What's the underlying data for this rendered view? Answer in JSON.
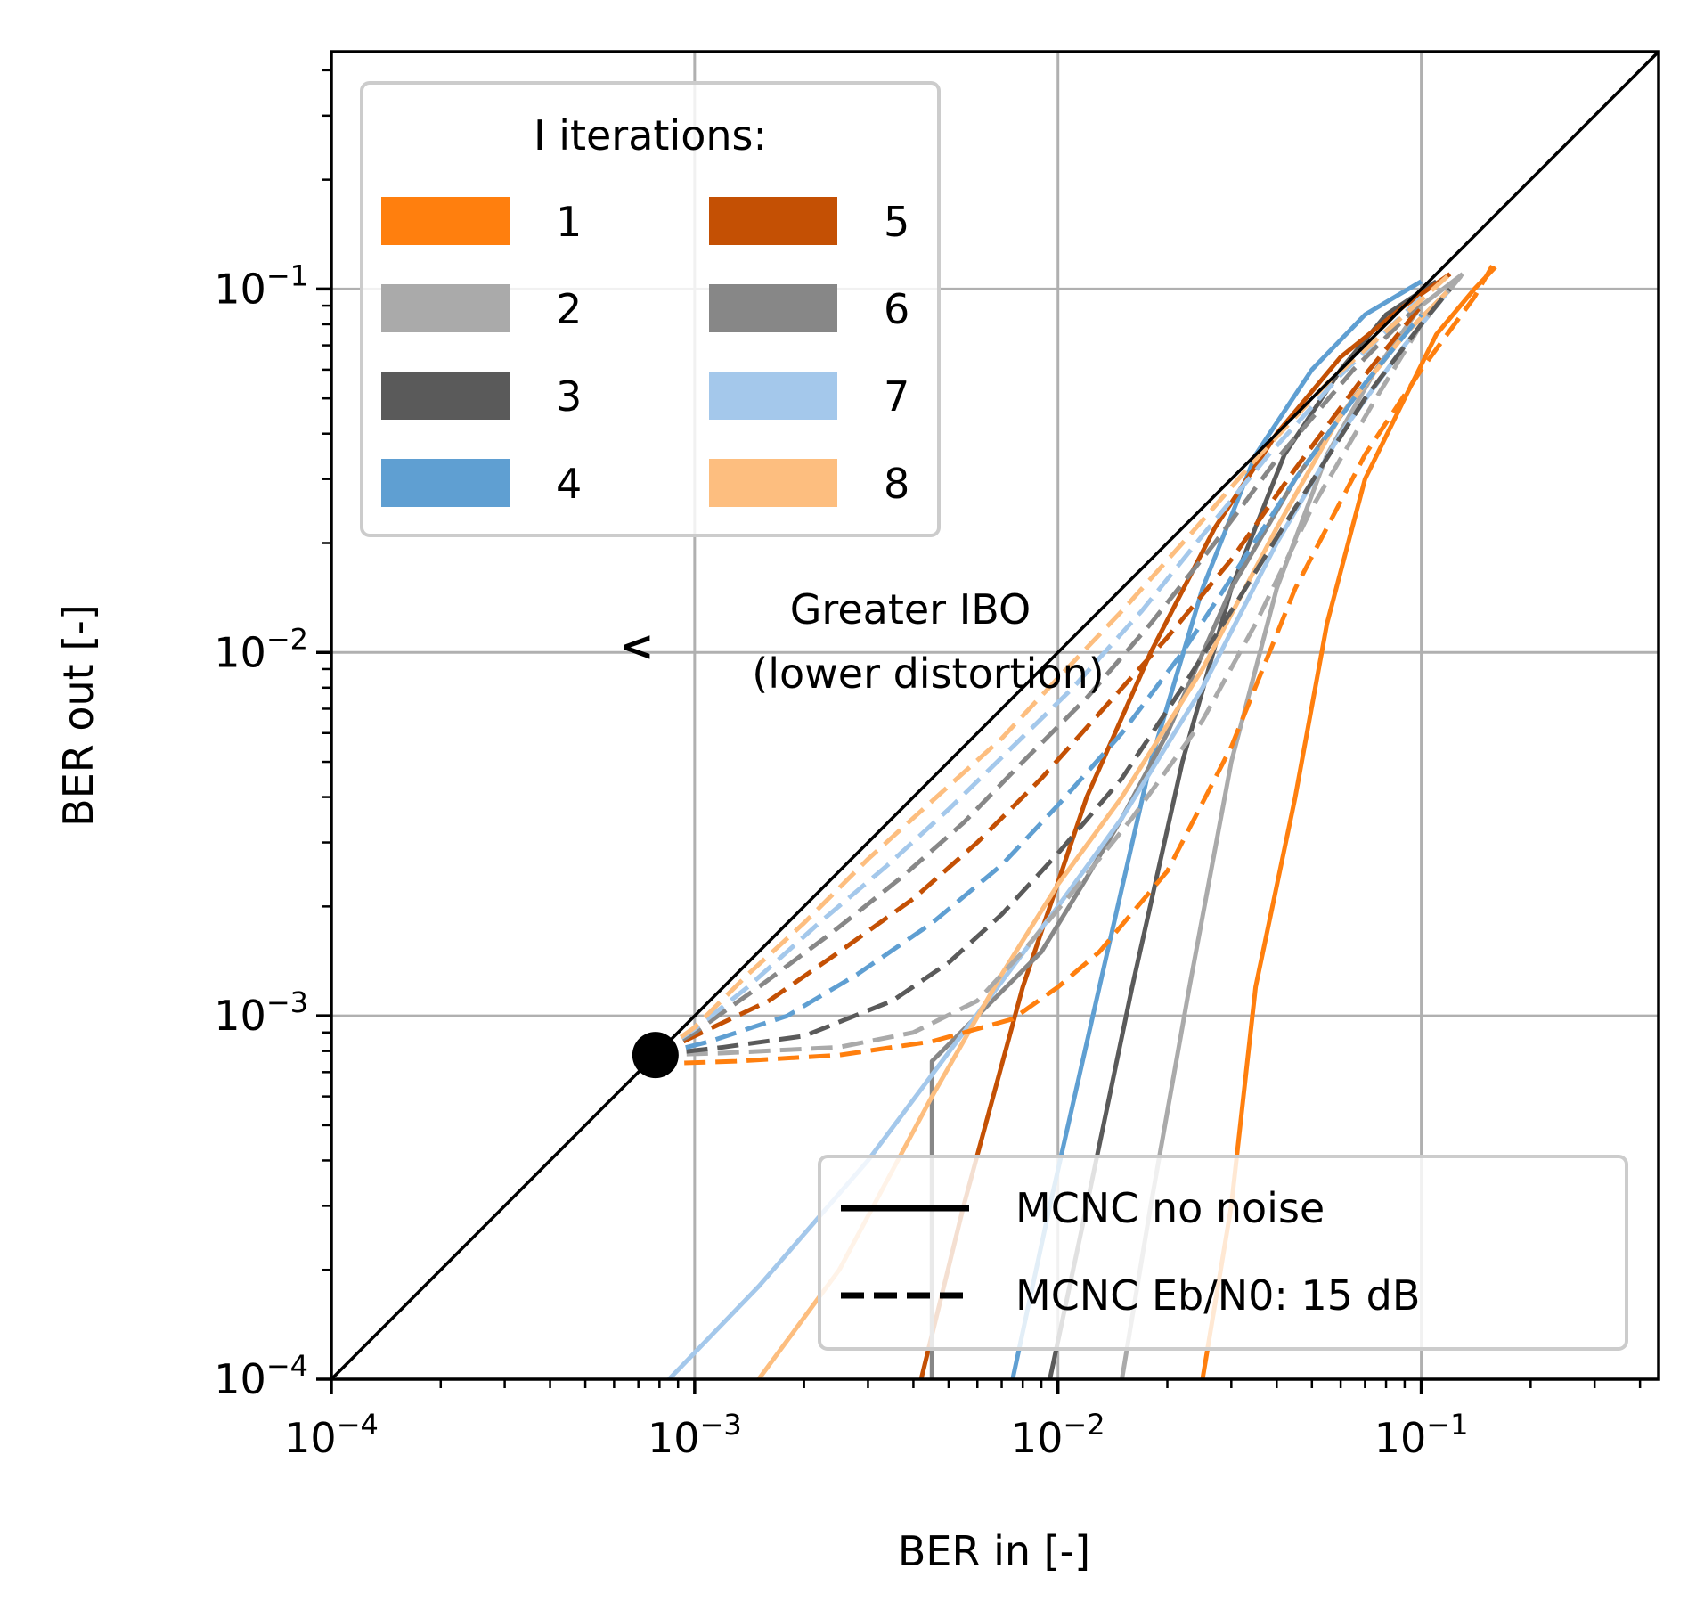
{
  "chart_data": {
    "type": "line",
    "title": "",
    "xlabel": "BER in [-]",
    "ylabel": "BER out [-]",
    "xscale": "log",
    "yscale": "log",
    "xlim": [
      0.0001,
      0.45
    ],
    "ylim": [
      0.0001,
      0.45
    ],
    "grid": true,
    "x_ticks": [
      {
        "value": 0.0001,
        "base": "10",
        "exp": "−4"
      },
      {
        "value": 0.001,
        "base": "10",
        "exp": "−3"
      },
      {
        "value": 0.01,
        "base": "10",
        "exp": "−2"
      },
      {
        "value": 0.1,
        "base": "10",
        "exp": "−1"
      }
    ],
    "y_ticks": [
      {
        "value": 0.0001,
        "base": "10",
        "exp": "−4"
      },
      {
        "value": 0.001,
        "base": "10",
        "exp": "−3"
      },
      {
        "value": 0.01,
        "base": "10",
        "exp": "−2"
      },
      {
        "value": 0.1,
        "base": "10",
        "exp": "−1"
      }
    ],
    "iterations_legend": {
      "title": "I iterations:",
      "placement": "upper-left",
      "entries": [
        {
          "label": "1",
          "color": "#ff7f0e"
        },
        {
          "label": "2",
          "color": "#aaaaaa"
        },
        {
          "label": "3",
          "color": "#5a5a5a"
        },
        {
          "label": "4",
          "color": "#5f9fd2"
        },
        {
          "label": "5",
          "color": "#c45004"
        },
        {
          "label": "6",
          "color": "#878787"
        },
        {
          "label": "7",
          "color": "#a4c8eb"
        },
        {
          "label": "8",
          "color": "#fdbe7f"
        }
      ]
    },
    "style_legend": {
      "placement": "lower-right",
      "entries": [
        {
          "label": "MCNC no noise",
          "dash": "solid"
        },
        {
          "label": "MCNC Eb/N0: 15 dB",
          "dash": "dashed"
        }
      ]
    },
    "annotation": {
      "text_lines": [
        "Greater IBO",
        "(lower distortion)"
      ],
      "arrow_symbol": "<",
      "at": [
        0.0008,
        0.01
      ]
    },
    "reference_line": {
      "name": "y = x",
      "color": "#000000"
    },
    "marker_point": {
      "x": 0.00078,
      "y": 0.00078
    },
    "series": [
      {
        "iteration": "1",
        "style": "solid",
        "color": "#ff7f0e",
        "x": [
          0.025,
          0.03,
          0.035,
          0.045,
          0.055,
          0.07,
          0.09,
          0.11,
          0.14,
          0.16
        ],
        "y": [
          0.0001,
          0.0003,
          0.0012,
          0.004,
          0.012,
          0.03,
          0.05,
          0.075,
          0.1,
          0.115
        ]
      },
      {
        "iteration": "2",
        "style": "solid",
        "color": "#aaaaaa",
        "x": [
          0.015,
          0.018,
          0.023,
          0.03,
          0.04,
          0.055,
          0.075,
          0.1,
          0.13
        ],
        "y": [
          0.0001,
          0.0003,
          0.0012,
          0.005,
          0.015,
          0.035,
          0.06,
          0.09,
          0.11
        ]
      },
      {
        "iteration": "3",
        "style": "solid",
        "color": "#5a5a5a",
        "x": [
          0.0095,
          0.012,
          0.016,
          0.022,
          0.03,
          0.042,
          0.06,
          0.08,
          0.11
        ],
        "y": [
          0.0001,
          0.0003,
          0.0012,
          0.005,
          0.015,
          0.035,
          0.06,
          0.085,
          0.105
        ]
      },
      {
        "iteration": "4",
        "style": "solid",
        "color": "#5f9fd2",
        "x": [
          0.0075,
          0.0095,
          0.013,
          0.018,
          0.025,
          0.035,
          0.05,
          0.07,
          0.1
        ],
        "y": [
          0.0001,
          0.0003,
          0.0012,
          0.005,
          0.015,
          0.035,
          0.06,
          0.085,
          0.105
        ]
      },
      {
        "iteration": "5",
        "style": "solid",
        "color": "#c45004",
        "x": [
          0.0042,
          0.0055,
          0.008,
          0.012,
          0.018,
          0.027,
          0.04,
          0.06,
          0.09,
          0.12
        ],
        "y": [
          0.0001,
          0.0003,
          0.0012,
          0.004,
          0.01,
          0.022,
          0.04,
          0.065,
          0.09,
          0.11
        ]
      },
      {
        "iteration": "6",
        "style": "solid",
        "color": "#878787",
        "x": [
          0.0045,
          0.0045,
          0.0045,
          0.006,
          0.009,
          0.012,
          0.015,
          0.02,
          0.03,
          0.045,
          0.065,
          0.09,
          0.12
        ],
        "y": [
          0.0001,
          0.0005,
          0.00075,
          0.001,
          0.0015,
          0.0024,
          0.0035,
          0.006,
          0.015,
          0.03,
          0.05,
          0.075,
          0.1
        ]
      },
      {
        "iteration": "7",
        "style": "solid",
        "color": "#a4c8eb",
        "x": [
          0.00085,
          0.0015,
          0.003,
          0.0055,
          0.01,
          0.015,
          0.025,
          0.04,
          0.06,
          0.09,
          0.12
        ],
        "y": [
          0.0001,
          0.00018,
          0.0004,
          0.0009,
          0.002,
          0.0035,
          0.008,
          0.02,
          0.04,
          0.07,
          0.1
        ]
      },
      {
        "iteration": "8",
        "style": "solid",
        "color": "#fdbe7f",
        "x": [
          0.0015,
          0.0025,
          0.0045,
          0.007,
          0.01,
          0.015,
          0.025,
          0.04,
          0.06,
          0.09,
          0.12
        ],
        "y": [
          0.0001,
          0.0002,
          0.0006,
          0.0013,
          0.0023,
          0.004,
          0.009,
          0.022,
          0.045,
          0.075,
          0.1
        ]
      },
      {
        "iteration": "1",
        "style": "dashed",
        "color": "#ff7f0e",
        "x": [
          0.00078,
          0.00085,
          0.0013,
          0.0025,
          0.0045,
          0.0075,
          0.01,
          0.013,
          0.02,
          0.03,
          0.045,
          0.07,
          0.1,
          0.14,
          0.16
        ],
        "y": [
          0.00078,
          0.00074,
          0.00075,
          0.00078,
          0.00085,
          0.00098,
          0.0012,
          0.0015,
          0.0025,
          0.0055,
          0.015,
          0.035,
          0.06,
          0.095,
          0.12
        ]
      },
      {
        "iteration": "2",
        "style": "dashed",
        "color": "#aaaaaa",
        "x": [
          0.00078,
          0.0012,
          0.0025,
          0.004,
          0.006,
          0.008,
          0.011,
          0.016,
          0.025,
          0.035,
          0.05,
          0.075,
          0.1,
          0.13
        ],
        "y": [
          0.00078,
          0.00079,
          0.00082,
          0.0009,
          0.0011,
          0.0015,
          0.0022,
          0.0035,
          0.0065,
          0.012,
          0.025,
          0.05,
          0.08,
          0.11
        ]
      },
      {
        "iteration": "3",
        "style": "dashed",
        "color": "#5a5a5a",
        "x": [
          0.00078,
          0.0012,
          0.002,
          0.0035,
          0.005,
          0.007,
          0.01,
          0.015,
          0.022,
          0.03,
          0.045,
          0.07,
          0.1,
          0.12
        ],
        "y": [
          0.00078,
          0.00082,
          0.00088,
          0.0011,
          0.0014,
          0.0019,
          0.0028,
          0.0045,
          0.008,
          0.013,
          0.025,
          0.05,
          0.08,
          0.1
        ]
      },
      {
        "iteration": "4",
        "style": "dashed",
        "color": "#5f9fd2",
        "x": [
          0.00078,
          0.0011,
          0.0018,
          0.0028,
          0.0045,
          0.007,
          0.01,
          0.015,
          0.022,
          0.03,
          0.045,
          0.07,
          0.1
        ],
        "y": [
          0.00078,
          0.00085,
          0.001,
          0.0013,
          0.0018,
          0.0026,
          0.0038,
          0.006,
          0.01,
          0.016,
          0.03,
          0.055,
          0.085
        ]
      },
      {
        "iteration": "5",
        "style": "dashed",
        "color": "#c45004",
        "x": [
          0.00078,
          0.001,
          0.0016,
          0.0025,
          0.004,
          0.006,
          0.009,
          0.013,
          0.02,
          0.03,
          0.045,
          0.07,
          0.1
        ],
        "y": [
          0.00078,
          0.00088,
          0.0011,
          0.0015,
          0.0021,
          0.003,
          0.0045,
          0.0068,
          0.011,
          0.018,
          0.032,
          0.058,
          0.09
        ]
      },
      {
        "iteration": "6",
        "style": "dashed",
        "color": "#878787",
        "x": [
          0.00078,
          0.001,
          0.0015,
          0.0024,
          0.0037,
          0.0055,
          0.008,
          0.012,
          0.018,
          0.027,
          0.04,
          0.065,
          0.1
        ],
        "y": [
          0.00078,
          0.0009,
          0.0012,
          0.0017,
          0.0024,
          0.0034,
          0.005,
          0.0075,
          0.012,
          0.02,
          0.034,
          0.06,
          0.092
        ]
      },
      {
        "iteration": "7",
        "style": "dashed",
        "color": "#a4c8eb",
        "x": [
          0.00078,
          0.001,
          0.0014,
          0.0022,
          0.0034,
          0.005,
          0.0075,
          0.011,
          0.017,
          0.025,
          0.038,
          0.06,
          0.1
        ],
        "y": [
          0.00078,
          0.00092,
          0.0012,
          0.0018,
          0.0026,
          0.0037,
          0.0055,
          0.008,
          0.013,
          0.021,
          0.035,
          0.058,
          0.095
        ]
      },
      {
        "iteration": "8",
        "style": "dashed",
        "color": "#fdbe7f",
        "x": [
          0.00078,
          0.001,
          0.0014,
          0.002,
          0.003,
          0.0045,
          0.007,
          0.01,
          0.015,
          0.023,
          0.035,
          0.055,
          0.09,
          0.12
        ],
        "y": [
          0.00078,
          0.00093,
          0.0013,
          0.0018,
          0.0027,
          0.0039,
          0.0058,
          0.0085,
          0.013,
          0.021,
          0.034,
          0.055,
          0.085,
          0.11
        ]
      }
    ]
  }
}
